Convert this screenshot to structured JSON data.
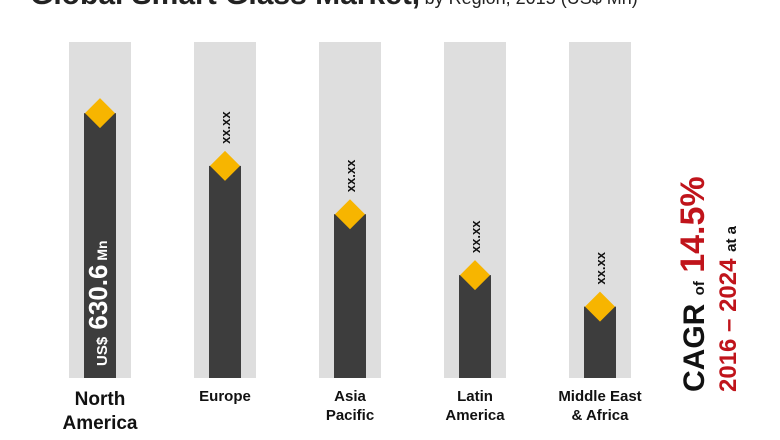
{
  "title": {
    "main": "Global Smart Glass Market,",
    "sub": "by Region, 2015 (US$ Mn)"
  },
  "chart_data": {
    "type": "bar",
    "categories": [
      [
        "North",
        "America"
      ],
      [
        "Europe"
      ],
      [
        "Asia",
        "Pacific"
      ],
      [
        "Latin",
        "America"
      ],
      [
        "Middle East",
        "& Africa"
      ]
    ],
    "values": [
      630.6,
      505,
      390,
      245,
      170
    ],
    "ylim": [
      0,
      800
    ],
    "data_labels": [
      "US$ 630.6 Mn",
      "xx.xx",
      "xx.xx",
      "xx.xx",
      "xx.xx"
    ],
    "colors": {
      "bar": "#3d3d3d",
      "track": "#dedede",
      "marker": "#f7b500",
      "label_light": "#ffffff",
      "label_dark": "#111111"
    }
  },
  "cagr": {
    "word": "CAGR",
    "of": "of",
    "rate": "14.5%",
    "period": "2016 – 2024",
    "at_a": "at a"
  }
}
